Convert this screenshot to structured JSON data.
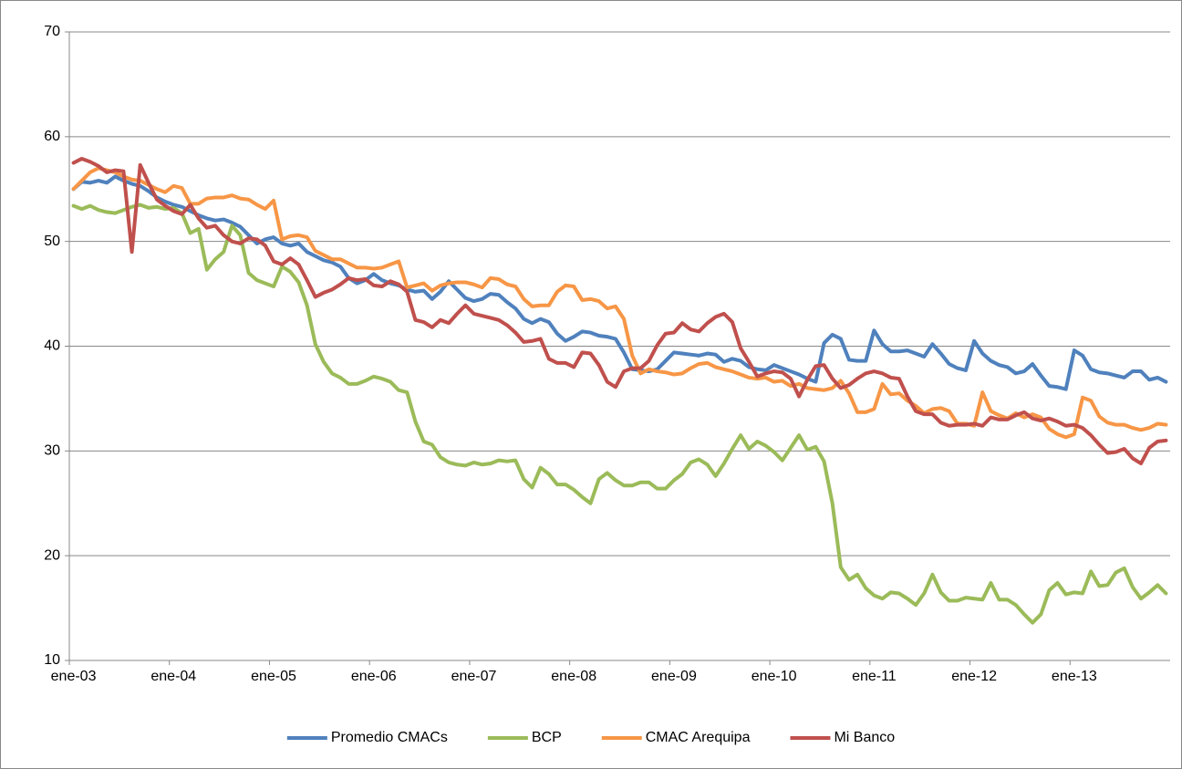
{
  "chart_data": {
    "type": "line",
    "categories": [
      "ene-03",
      null,
      null,
      null,
      null,
      null,
      null,
      null,
      null,
      null,
      null,
      null,
      "ene-04",
      null,
      null,
      null,
      null,
      null,
      null,
      null,
      null,
      null,
      null,
      null,
      "ene-05",
      null,
      null,
      null,
      null,
      null,
      null,
      null,
      null,
      null,
      null,
      null,
      "ene-06",
      null,
      null,
      null,
      null,
      null,
      null,
      null,
      null,
      null,
      null,
      null,
      "ene-07",
      null,
      null,
      null,
      null,
      null,
      null,
      null,
      null,
      null,
      null,
      null,
      "ene-08",
      null,
      null,
      null,
      null,
      null,
      null,
      null,
      null,
      null,
      null,
      null,
      "ene-09",
      null,
      null,
      null,
      null,
      null,
      null,
      null,
      null,
      null,
      null,
      null,
      "ene-10",
      null,
      null,
      null,
      null,
      null,
      null,
      null,
      null,
      null,
      null,
      null,
      "ene-11",
      null,
      null,
      null,
      null,
      null,
      null,
      null,
      null,
      null,
      null,
      null,
      "ene-12",
      null,
      null,
      null,
      null,
      null,
      null,
      null,
      null,
      null,
      null,
      null,
      "ene-13",
      null,
      null,
      null,
      null,
      null,
      null,
      null,
      null,
      null,
      null,
      null
    ],
    "series": [
      {
        "name": "Promedio CMACs",
        "color": "#4f81bd",
        "values": [
          55.0,
          55.7,
          55.6,
          55.8,
          55.6,
          56.2,
          55.8,
          55.5,
          55.3,
          54.8,
          54.2,
          53.8,
          53.5,
          53.3,
          52.9,
          52.5,
          52.2,
          52.0,
          52.1,
          51.8,
          51.4,
          50.6,
          49.8,
          50.2,
          50.4,
          49.8,
          49.6,
          49.8,
          49.0,
          48.6,
          48.2,
          48.0,
          47.6,
          46.5,
          46.0,
          46.3,
          46.9,
          46.3,
          46.0,
          45.8,
          45.4,
          45.2,
          45.3,
          44.5,
          45.2,
          46.2,
          45.4,
          44.6,
          44.3,
          44.5,
          45.0,
          44.9,
          44.2,
          43.6,
          42.6,
          42.2,
          42.6,
          42.3,
          41.2,
          40.5,
          40.9,
          41.4,
          41.3,
          41.0,
          40.9,
          40.7,
          39.4,
          37.8,
          37.7,
          37.6,
          37.8,
          38.6,
          39.4,
          39.3,
          39.2,
          39.1,
          39.3,
          39.2,
          38.5,
          38.8,
          38.6,
          38.0,
          37.8,
          37.7,
          38.2,
          37.9,
          37.6,
          37.3,
          36.9,
          36.6,
          40.3,
          41.1,
          40.7,
          38.7,
          38.6,
          38.6,
          41.5,
          40.2,
          39.5,
          39.5,
          39.6,
          39.3,
          39.0,
          40.2,
          39.3,
          38.3,
          37.9,
          37.7,
          40.5,
          39.3,
          38.6,
          38.2,
          38.0,
          37.4,
          37.6,
          38.3,
          37.2,
          36.2,
          36.1,
          35.9,
          39.6,
          39.1,
          37.8,
          37.5,
          37.4,
          37.2,
          37.0,
          37.6,
          37.6,
          36.8,
          37.0,
          36.6
        ]
      },
      {
        "name": "BCP",
        "color": "#9bbb59",
        "values": [
          53.4,
          53.1,
          53.4,
          53.0,
          52.8,
          52.7,
          53.0,
          53.3,
          53.5,
          53.2,
          53.3,
          53.1,
          53.2,
          52.7,
          50.8,
          51.2,
          47.3,
          48.3,
          49.0,
          51.5,
          50.6,
          47.0,
          46.3,
          46.0,
          45.7,
          47.6,
          47.1,
          46.1,
          43.9,
          40.2,
          38.5,
          37.4,
          37.0,
          36.4,
          36.4,
          36.7,
          37.1,
          36.9,
          36.6,
          35.8,
          35.6,
          32.8,
          30.9,
          30.6,
          29.4,
          28.9,
          28.7,
          28.6,
          28.9,
          28.7,
          28.8,
          29.1,
          29.0,
          29.1,
          27.3,
          26.5,
          28.4,
          27.8,
          26.8,
          26.8,
          26.3,
          25.6,
          25.0,
          27.3,
          27.9,
          27.2,
          26.7,
          26.7,
          27.0,
          27.0,
          26.4,
          26.4,
          27.2,
          27.8,
          28.9,
          29.2,
          28.7,
          27.6,
          28.8,
          30.2,
          31.5,
          30.2,
          30.9,
          30.5,
          29.9,
          29.1,
          30.3,
          31.5,
          30.1,
          30.4,
          29.0,
          25.0,
          18.9,
          17.7,
          18.2,
          16.9,
          16.2,
          15.9,
          16.5,
          16.4,
          15.9,
          15.3,
          16.4,
          18.2,
          16.5,
          15.7,
          15.7,
          16.0,
          15.9,
          15.8,
          17.4,
          15.8,
          15.8,
          15.3,
          14.4,
          13.6,
          14.4,
          16.7,
          17.4,
          16.3,
          16.5,
          16.4,
          18.5,
          17.1,
          17.2,
          18.4,
          18.8,
          17.0,
          15.9,
          16.5,
          17.2,
          16.4
        ]
      },
      {
        "name": "CMAC Arequipa",
        "color": "#f79646",
        "values": [
          55.0,
          55.8,
          56.6,
          57.0,
          56.8,
          56.6,
          56.2,
          55.9,
          55.8,
          55.4,
          55.0,
          54.7,
          55.3,
          55.1,
          53.6,
          53.6,
          54.1,
          54.2,
          54.2,
          54.4,
          54.1,
          54.0,
          53.5,
          53.1,
          53.9,
          50.2,
          50.5,
          50.6,
          50.4,
          49.1,
          48.7,
          48.3,
          48.3,
          47.9,
          47.5,
          47.5,
          47.4,
          47.5,
          47.8,
          48.1,
          45.6,
          45.8,
          46.0,
          45.3,
          45.8,
          46.0,
          46.1,
          46.1,
          45.9,
          45.6,
          46.5,
          46.4,
          45.9,
          45.7,
          44.5,
          43.8,
          43.9,
          43.9,
          45.2,
          45.8,
          45.7,
          44.4,
          44.5,
          44.3,
          43.6,
          43.8,
          42.6,
          39.1,
          37.4,
          37.8,
          37.6,
          37.5,
          37.3,
          37.4,
          37.9,
          38.3,
          38.4,
          38.0,
          37.8,
          37.6,
          37.3,
          37.0,
          36.9,
          37.0,
          36.6,
          36.7,
          36.2,
          36.4,
          36.0,
          35.9,
          35.8,
          36.0,
          36.7,
          35.5,
          33.7,
          33.7,
          34.0,
          36.4,
          35.4,
          35.5,
          34.8,
          34.3,
          33.6,
          34.0,
          34.1,
          33.8,
          32.6,
          32.6,
          32.4,
          35.6,
          33.8,
          33.4,
          33.1,
          33.6,
          33.2,
          33.5,
          33.2,
          32.1,
          31.6,
          31.3,
          31.6,
          35.1,
          34.8,
          33.3,
          32.7,
          32.5,
          32.5,
          32.2,
          32.0,
          32.2,
          32.6,
          32.5
        ]
      },
      {
        "name": "Mi Banco",
        "color": "#c0504d",
        "values": [
          57.5,
          57.9,
          57.6,
          57.2,
          56.6,
          56.8,
          56.7,
          49.0,
          57.3,
          55.6,
          54.0,
          53.4,
          52.9,
          52.6,
          53.5,
          52.2,
          51.3,
          51.5,
          50.6,
          50.0,
          49.8,
          50.3,
          50.2,
          49.6,
          48.1,
          47.8,
          48.4,
          47.8,
          46.3,
          44.7,
          45.1,
          45.4,
          45.9,
          46.5,
          46.3,
          46.4,
          45.8,
          45.7,
          46.2,
          45.9,
          45.2,
          42.5,
          42.3,
          41.8,
          42.5,
          42.2,
          43.1,
          43.9,
          43.1,
          42.9,
          42.7,
          42.5,
          42.0,
          41.3,
          40.4,
          40.5,
          40.7,
          38.8,
          38.4,
          38.4,
          38.0,
          39.4,
          39.3,
          38.2,
          36.6,
          36.1,
          37.6,
          37.9,
          37.9,
          38.6,
          40.1,
          41.2,
          41.3,
          42.2,
          41.6,
          41.4,
          42.2,
          42.8,
          43.1,
          42.3,
          39.8,
          38.5,
          37.1,
          37.4,
          37.6,
          37.5,
          36.9,
          35.2,
          36.8,
          38.1,
          38.2,
          36.9,
          36.0,
          36.3,
          36.9,
          37.4,
          37.6,
          37.4,
          37.0,
          36.9,
          35.2,
          33.8,
          33.5,
          33.5,
          32.7,
          32.4,
          32.5,
          32.5,
          32.6,
          32.4,
          33.2,
          33.0,
          33.0,
          33.4,
          33.7,
          33.1,
          32.9,
          33.1,
          32.8,
          32.4,
          32.5,
          32.2,
          31.5,
          30.6,
          29.8,
          29.9,
          30.2,
          29.3,
          28.8,
          30.3,
          30.9,
          31.0
        ]
      }
    ],
    "ylim": [
      10,
      70
    ],
    "yticks": [
      10,
      20,
      30,
      40,
      50,
      60,
      70
    ],
    "grid": true,
    "legend": "bottom"
  }
}
